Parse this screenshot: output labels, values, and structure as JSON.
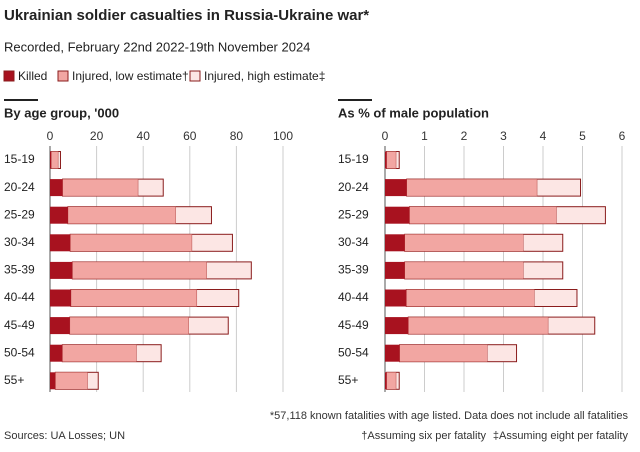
{
  "title": "Ukrainian soldier casualties in Russia-Ukraine war*",
  "subtitle": "Recorded, February 22nd 2022-19th November 2024",
  "notes": [
    "*57,118 known fatalities with age listed. Data does not include all fatalities",
    "†Assuming six per fatality",
    "‡Assuming eight per fatality"
  ],
  "source": "Sources: UA Losses; UN",
  "chart_data": [
    {
      "type": "bar",
      "orientation": "horizontal",
      "title": "By age group, '000",
      "categories": [
        "15-19",
        "20-24",
        "25-29",
        "30-34",
        "35-39",
        "40-44",
        "45-49",
        "50-54",
        "55+"
      ],
      "xlim": [
        0,
        100
      ],
      "xticks": [
        0,
        20,
        40,
        60,
        80,
        100
      ],
      "grid": true,
      "series": [
        {
          "name": "Killed",
          "color": "#a8121f",
          "values": [
            0.5,
            5.4,
            7.7,
            8.7,
            9.6,
            9.0,
            8.5,
            5.3,
            2.3
          ]
        },
        {
          "name": "Injured, low estimate†",
          "color": "#f2a6a2",
          "values": [
            3,
            32.4,
            46.2,
            52.2,
            57.6,
            54,
            51,
            31.8,
            13.8
          ]
        },
        {
          "name": "Injured, high estimate‡",
          "color": "#fce6e4",
          "values": [
            4,
            43.2,
            61.6,
            69.6,
            76.8,
            72,
            68,
            42.4,
            18.4
          ]
        }
      ]
    },
    {
      "type": "bar",
      "orientation": "horizontal",
      "title": "As % of male population",
      "categories": [
        "15-19",
        "20-24",
        "25-29",
        "30-34",
        "35-39",
        "40-44",
        "45-49",
        "50-54",
        "55+"
      ],
      "xlim": [
        0,
        6
      ],
      "xticks": [
        0,
        1,
        2,
        3,
        4,
        5,
        6
      ],
      "grid": true,
      "series": [
        {
          "color": "#a8121f",
          "values": [
            0.04,
            0.55,
            0.62,
            0.5,
            0.5,
            0.54,
            0.59,
            0.37,
            0.04
          ]
        },
        {
          "color": "#f2a6a2",
          "values": [
            0.24,
            3.3,
            3.72,
            3,
            3,
            3.24,
            3.54,
            2.22,
            0.24
          ]
        },
        {
          "color": "#fce6e4",
          "values": [
            0.32,
            4.4,
            4.96,
            4,
            4,
            4.32,
            4.72,
            2.96,
            0.32
          ]
        }
      ]
    }
  ]
}
